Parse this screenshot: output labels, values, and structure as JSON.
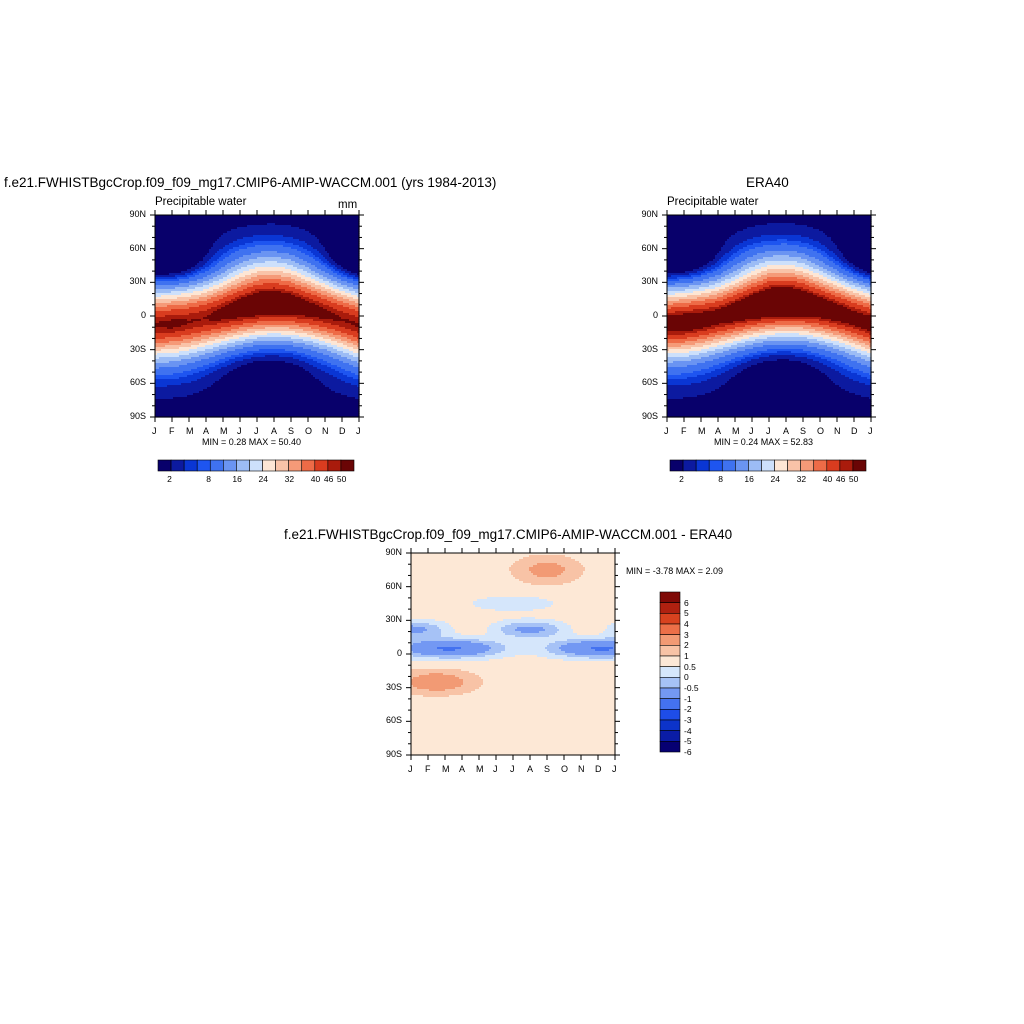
{
  "chart_data": [
    {
      "type": "heatmap",
      "title": "f.e21.FWHISTBgcCrop.f09_f09_mg17.CMIP6-AMIP-WACCM.001 (yrs 1984-2013)",
      "subtitle_left": "Precipitable water",
      "subtitle_right": "mm",
      "x_tick_labels": [
        "J",
        "F",
        "M",
        "A",
        "M",
        "J",
        "J",
        "A",
        "S",
        "O",
        "N",
        "D",
        "J"
      ],
      "y_tick_labels": [
        "90N",
        "60N",
        "30N",
        "0",
        "30S",
        "60S",
        "90S"
      ],
      "ylim": [
        -90,
        90
      ],
      "min_max_text": "MIN =   0.28 MAX =  50.40",
      "min": 0.28,
      "max": 50.4,
      "colorbar_labels": [
        "2",
        "8",
        "16",
        "24",
        "32",
        "40",
        "46",
        "50"
      ],
      "peak_latitude_by_month": [
        -8,
        -7,
        -5,
        -2,
        2,
        6,
        9,
        10,
        9,
        6,
        2,
        -3,
        -8
      ],
      "peak_value_by_month": [
        46,
        46.5,
        46,
        46,
        47.5,
        49,
        50.2,
        50.4,
        49.5,
        48,
        47,
        46,
        46
      ]
    },
    {
      "type": "heatmap",
      "title": "ERA40",
      "subtitle_left": "Precipitable water",
      "subtitle_right": "",
      "x_tick_labels": [
        "J",
        "F",
        "M",
        "A",
        "M",
        "J",
        "J",
        "A",
        "S",
        "O",
        "N",
        "D",
        "J"
      ],
      "y_tick_labels": [
        "90N",
        "60N",
        "30N",
        "0",
        "30S",
        "60S",
        "90S"
      ],
      "ylim": [
        -90,
        90
      ],
      "min_max_text": "MIN =   0.24 MAX =  52.83",
      "min": 0.24,
      "max": 52.83,
      "colorbar_labels": [
        "2",
        "8",
        "16",
        "24",
        "32",
        "40",
        "46",
        "50"
      ],
      "peak_latitude_by_month": [
        -7,
        -6,
        -4,
        -1,
        3,
        7,
        10,
        11,
        10,
        7,
        3,
        -2,
        -7
      ],
      "peak_value_by_month": [
        48,
        49,
        48.5,
        48,
        49.5,
        51,
        52.5,
        52.8,
        51.5,
        50,
        49,
        48,
        48
      ]
    },
    {
      "type": "heatmap",
      "title": "f.e21.FWHISTBgcCrop.f09_f09_mg17.CMIP6-AMIP-WACCM.001 - ERA40",
      "x_tick_labels": [
        "J",
        "F",
        "M",
        "A",
        "M",
        "J",
        "J",
        "A",
        "S",
        "O",
        "N",
        "D",
        "J"
      ],
      "y_tick_labels": [
        "90N",
        "60N",
        "30N",
        "0",
        "30S",
        "60S",
        "90S"
      ],
      "ylim": [
        -90,
        90
      ],
      "min_max_text": "MIN =  -3.78 MAX =   2.09",
      "min": -3.78,
      "max": 2.09,
      "colorbar_labels": [
        "6",
        "5",
        "4",
        "3",
        "2",
        "1",
        "0.5",
        "0",
        "-0.5",
        "-1",
        "-2",
        "-3",
        "-4",
        "-5",
        "-6"
      ]
    }
  ],
  "colors": {
    "precip_levels": [
      "#08006b",
      "#0c1aa0",
      "#0a36d4",
      "#1e55f0",
      "#3f72f0",
      "#6a94f2",
      "#9cbcf5",
      "#cde0fb",
      "#fde6d5",
      "#f9c3a8",
      "#f59a78",
      "#ee6b47",
      "#d93c1f",
      "#a91b0c",
      "#6a0505"
    ],
    "diff_levels": [
      "#060072",
      "#0a1ca6",
      "#0c33c9",
      "#1e4de8",
      "#4472f0",
      "#7398f3",
      "#a6c2f6",
      "#d5e6fb",
      "#fde8d6",
      "#f8c3a6",
      "#f29a74",
      "#ec6f48",
      "#d8421f",
      "#b02110",
      "#7f0a06"
    ]
  }
}
